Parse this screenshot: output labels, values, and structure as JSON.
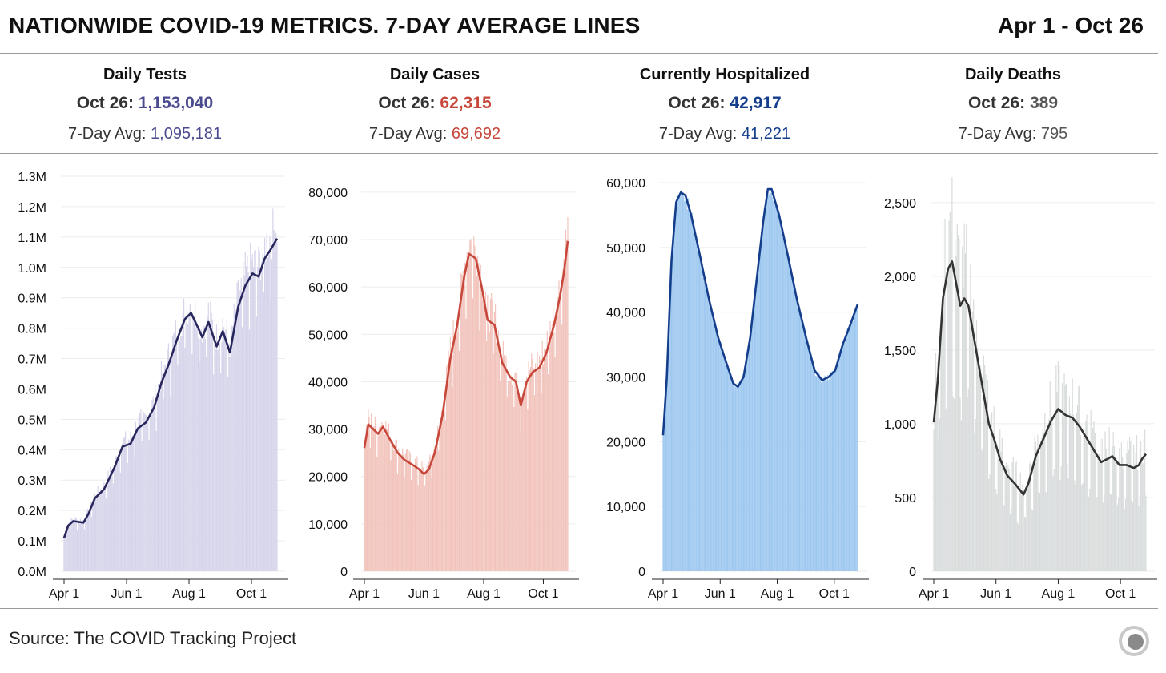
{
  "header": {
    "title": "NATIONWIDE COVID-19 METRICS. 7-DAY AVERAGE LINES",
    "date_range": "Apr 1 - Oct 26"
  },
  "footer": {
    "source": "Source: The COVID Tracking Project",
    "logo_icon": "covid-tracking-logo-icon"
  },
  "x_ticks": [
    "Apr 1",
    "Jun 1",
    "Aug 1",
    "Oct 1"
  ],
  "chart_data": [
    {
      "type": "bar",
      "title": "Daily Tests",
      "latest_label": "Oct 26:",
      "latest_value": "1,153,040",
      "avg_label": "7-Day Avg:",
      "avg_value": "1,095,181",
      "color_line": "#27275e",
      "color_bar": "#d6d4ea",
      "color_accent": "#4b4b8f",
      "ylim": [
        0,
        1300000
      ],
      "y_ticks": [
        "0.0M",
        "0.1M",
        "0.2M",
        "0.3M",
        "0.4M",
        "0.5M",
        "0.6M",
        "0.7M",
        "0.8M",
        "0.9M",
        "1.0M",
        "1.1M",
        "1.2M",
        "1.3M"
      ],
      "y_tick_values": [
        0,
        100000,
        200000,
        300000,
        400000,
        500000,
        600000,
        700000,
        800000,
        900000,
        1000000,
        1100000,
        1200000,
        1300000
      ],
      "avg_series": {
        "name": "7-Day Average",
        "points": [
          [
            "Apr 1",
            110000
          ],
          [
            "Apr 5",
            150000
          ],
          [
            "Apr 10",
            165000
          ],
          [
            "Apr 20",
            160000
          ],
          [
            "Apr 25",
            190000
          ],
          [
            "May 1",
            240000
          ],
          [
            "May 10",
            270000
          ],
          [
            "May 20",
            340000
          ],
          [
            "May 28",
            410000
          ],
          [
            "Jun 5",
            420000
          ],
          [
            "Jun 12",
            470000
          ],
          [
            "Jun 20",
            490000
          ],
          [
            "Jun 28",
            540000
          ],
          [
            "Jul 5",
            620000
          ],
          [
            "Jul 12",
            680000
          ],
          [
            "Jul 20",
            760000
          ],
          [
            "Jul 28",
            830000
          ],
          [
            "Aug 3",
            850000
          ],
          [
            "Aug 10",
            800000
          ],
          [
            "Aug 14",
            770000
          ],
          [
            "Aug 20",
            820000
          ],
          [
            "Aug 28",
            740000
          ],
          [
            "Sep 3",
            790000
          ],
          [
            "Sep 10",
            720000
          ],
          [
            "Sep 18",
            870000
          ],
          [
            "Sep 25",
            940000
          ],
          [
            "Oct 2",
            980000
          ],
          [
            "Oct 8",
            970000
          ],
          [
            "Oct 14",
            1030000
          ],
          [
            "Oct 20",
            1060000
          ],
          [
            "Oct 26",
            1095181
          ]
        ]
      }
    },
    {
      "type": "bar",
      "title": "Daily Cases",
      "latest_label": "Oct 26:",
      "latest_value": "62,315",
      "avg_label": "7-Day Avg:",
      "avg_value": "69,692",
      "color_line": "#c8473b",
      "color_bar": "#f2c3bb",
      "color_accent": "#c8473b",
      "ylim": [
        0,
        82000
      ],
      "y_ticks": [
        "0",
        "10,000",
        "20,000",
        "30,000",
        "40,000",
        "50,000",
        "60,000",
        "70,000",
        "80,000"
      ],
      "y_tick_values": [
        0,
        10000,
        20000,
        30000,
        40000,
        50000,
        60000,
        70000,
        80000
      ],
      "avg_series": {
        "name": "7-Day Average",
        "points": [
          [
            "Apr 1",
            26000
          ],
          [
            "Apr 5",
            31000
          ],
          [
            "Apr 10",
            30000
          ],
          [
            "Apr 15",
            29000
          ],
          [
            "Apr 20",
            30500
          ],
          [
            "Apr 28",
            27500
          ],
          [
            "May 5",
            25000
          ],
          [
            "May 12",
            23500
          ],
          [
            "May 20",
            22500
          ],
          [
            "May 27",
            21500
          ],
          [
            "Jun 1",
            20500
          ],
          [
            "Jun 6",
            21500
          ],
          [
            "Jun 12",
            25000
          ],
          [
            "Jun 20",
            33000
          ],
          [
            "Jun 28",
            45000
          ],
          [
            "Jul 5",
            52000
          ],
          [
            "Jul 12",
            62000
          ],
          [
            "Jul 17",
            67000
          ],
          [
            "Jul 24",
            66000
          ],
          [
            "Jul 30",
            60000
          ],
          [
            "Aug 5",
            53000
          ],
          [
            "Aug 12",
            52000
          ],
          [
            "Aug 20",
            44000
          ],
          [
            "Aug 28",
            41000
          ],
          [
            "Sep 3",
            40000
          ],
          [
            "Sep 8",
            35000
          ],
          [
            "Sep 14",
            40000
          ],
          [
            "Sep 20",
            42000
          ],
          [
            "Sep 27",
            43000
          ],
          [
            "Oct 4",
            46000
          ],
          [
            "Oct 12",
            52000
          ],
          [
            "Oct 18",
            58000
          ],
          [
            "Oct 22",
            63000
          ],
          [
            "Oct 26",
            69692
          ]
        ]
      }
    },
    {
      "type": "bar",
      "title": "Currently Hospitalized",
      "latest_label": "Oct 26:",
      "latest_value": "42,917",
      "avg_label": "7-Day Avg:",
      "avg_value": "41,221",
      "color_line": "#143d8c",
      "color_bar": "#9cc7ef",
      "color_accent": "#143d8c",
      "ylim": [
        0,
        60000
      ],
      "y_ticks": [
        "0",
        "10,000",
        "20,000",
        "30,000",
        "40,000",
        "50,000",
        "60,000"
      ],
      "y_tick_values": [
        0,
        10000,
        20000,
        30000,
        40000,
        50000,
        60000
      ],
      "avg_series": {
        "name": "7-Day Average",
        "points": [
          [
            "Apr 1",
            21000
          ],
          [
            "Apr 5",
            30000
          ],
          [
            "Apr 10",
            48000
          ],
          [
            "Apr 15",
            57000
          ],
          [
            "Apr 20",
            58500
          ],
          [
            "Apr 25",
            58000
          ],
          [
            "May 1",
            55000
          ],
          [
            "May 10",
            49000
          ],
          [
            "May 20",
            42000
          ],
          [
            "May 30",
            36000
          ],
          [
            "Jun 8",
            32000
          ],
          [
            "Jun 15",
            29000
          ],
          [
            "Jun 20",
            28500
          ],
          [
            "Jun 26",
            30000
          ],
          [
            "Jul 3",
            36000
          ],
          [
            "Jul 10",
            45000
          ],
          [
            "Jul 17",
            54000
          ],
          [
            "Jul 22",
            59000
          ],
          [
            "Jul 26",
            59000
          ],
          [
            "Aug 3",
            55000
          ],
          [
            "Aug 12",
            49000
          ],
          [
            "Aug 22",
            42000
          ],
          [
            "Sep 1",
            36000
          ],
          [
            "Sep 10",
            31000
          ],
          [
            "Sep 18",
            29500
          ],
          [
            "Sep 25",
            30000
          ],
          [
            "Oct 2",
            31000
          ],
          [
            "Oct 10",
            35000
          ],
          [
            "Oct 18",
            38000
          ],
          [
            "Oct 26",
            41221
          ]
        ]
      }
    },
    {
      "type": "bar",
      "title": "Daily Deaths",
      "latest_label": "Oct 26:",
      "latest_value": "389",
      "avg_label": "7-Day Avg:",
      "avg_value": "795",
      "color_line": "#333333",
      "color_bar": "#d9dcdc",
      "color_accent": "#555555",
      "ylim": [
        0,
        2700
      ],
      "y_ticks": [
        "0",
        "500",
        "1,000",
        "1,500",
        "2,000",
        "2,500"
      ],
      "y_tick_values": [
        0,
        500,
        1000,
        1500,
        2000,
        2500
      ],
      "avg_series": {
        "name": "7-Day Average",
        "points": [
          [
            "Apr 1",
            1010
          ],
          [
            "Apr 5",
            1300
          ],
          [
            "Apr 10",
            1850
          ],
          [
            "Apr 15",
            2050
          ],
          [
            "Apr 19",
            2100
          ],
          [
            "Apr 23",
            1950
          ],
          [
            "Apr 27",
            1800
          ],
          [
            "May 1",
            1850
          ],
          [
            "May 5",
            1800
          ],
          [
            "May 10",
            1600
          ],
          [
            "May 15",
            1400
          ],
          [
            "May 20",
            1200
          ],
          [
            "May 25",
            1000
          ],
          [
            "May 30",
            900
          ],
          [
            "Jun 5",
            760
          ],
          [
            "Jun 12",
            650
          ],
          [
            "Jun 20",
            590
          ],
          [
            "Jun 28",
            520
          ],
          [
            "Jul 3",
            600
          ],
          [
            "Jul 10",
            780
          ],
          [
            "Jul 17",
            890
          ],
          [
            "Jul 25",
            1020
          ],
          [
            "Aug 1",
            1100
          ],
          [
            "Aug 8",
            1060
          ],
          [
            "Aug 15",
            1040
          ],
          [
            "Aug 22",
            980
          ],
          [
            "Aug 29",
            900
          ],
          [
            "Sep 5",
            820
          ],
          [
            "Sep 12",
            740
          ],
          [
            "Sep 18",
            760
          ],
          [
            "Sep 23",
            780
          ],
          [
            "Sep 30",
            720
          ],
          [
            "Oct 7",
            720
          ],
          [
            "Oct 14",
            700
          ],
          [
            "Oct 19",
            720
          ],
          [
            "Oct 22",
            760
          ],
          [
            "Oct 26",
            795
          ]
        ]
      }
    }
  ]
}
